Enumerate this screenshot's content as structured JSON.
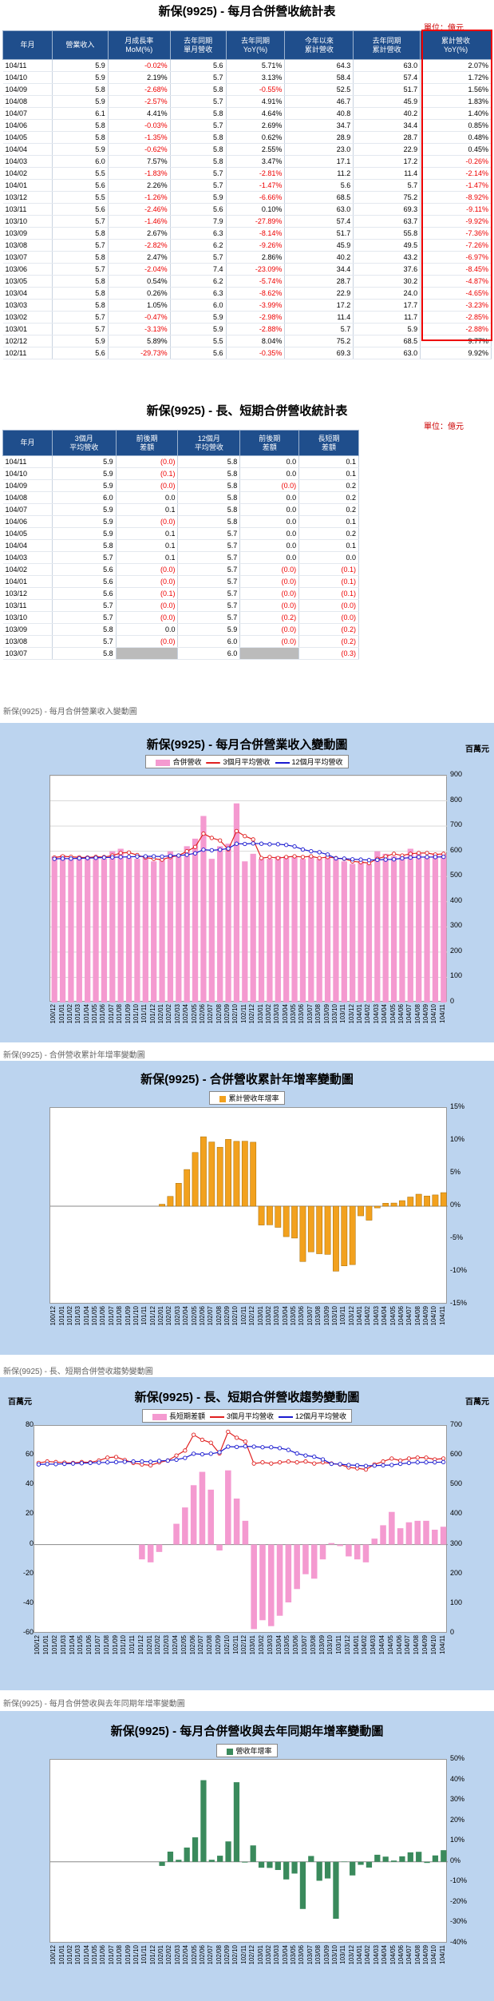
{
  "table1": {
    "title": "新保(9925)  - 每月合併營收統計表",
    "unit": "單位：億元",
    "headers": [
      "年月",
      "營業收入",
      "月成長率\nMoM(%)",
      "去年同期\n單月營收",
      "去年同期\nYoY(%)",
      "今年以來\n累計營收",
      "去年同期\n累計營收",
      "累計營收\nYoY(%)"
    ],
    "rows": [
      [
        "104/11",
        "5.9",
        "-0.02%",
        "5.6",
        "5.71%",
        "64.3",
        "63.0",
        "2.07%"
      ],
      [
        "104/10",
        "5.9",
        "2.19%",
        "5.7",
        "3.13%",
        "58.4",
        "57.4",
        "1.72%"
      ],
      [
        "104/09",
        "5.8",
        "-2.68%",
        "5.8",
        "-0.55%",
        "52.5",
        "51.7",
        "1.56%"
      ],
      [
        "104/08",
        "5.9",
        "-2.57%",
        "5.7",
        "4.91%",
        "46.7",
        "45.9",
        "1.83%"
      ],
      [
        "104/07",
        "6.1",
        "4.41%",
        "5.8",
        "4.64%",
        "40.8",
        "40.2",
        "1.40%"
      ],
      [
        "104/06",
        "5.8",
        "-0.03%",
        "5.7",
        "2.69%",
        "34.7",
        "34.4",
        "0.85%"
      ],
      [
        "104/05",
        "5.8",
        "-1.35%",
        "5.8",
        "0.62%",
        "28.9",
        "28.7",
        "0.48%"
      ],
      [
        "104/04",
        "5.9",
        "-0.62%",
        "5.8",
        "2.55%",
        "23.0",
        "22.9",
        "0.45%"
      ],
      [
        "104/03",
        "6.0",
        "7.57%",
        "5.8",
        "3.47%",
        "17.1",
        "17.2",
        "-0.26%"
      ],
      [
        "104/02",
        "5.5",
        "-1.83%",
        "5.7",
        "-2.81%",
        "11.2",
        "11.4",
        "-2.14%"
      ],
      [
        "104/01",
        "5.6",
        "2.26%",
        "5.7",
        "-1.47%",
        "5.6",
        "5.7",
        "-1.47%"
      ],
      [
        "103/12",
        "5.5",
        "-1.26%",
        "5.9",
        "-6.66%",
        "68.5",
        "75.2",
        "-8.92%"
      ],
      [
        "103/11",
        "5.6",
        "-2.46%",
        "5.6",
        "0.10%",
        "63.0",
        "69.3",
        "-9.11%"
      ],
      [
        "103/10",
        "5.7",
        "-1.46%",
        "7.9",
        "-27.89%",
        "57.4",
        "63.7",
        "-9.92%"
      ],
      [
        "103/09",
        "5.8",
        "2.67%",
        "6.3",
        "-8.14%",
        "51.7",
        "55.8",
        "-7.36%"
      ],
      [
        "103/08",
        "5.7",
        "-2.82%",
        "6.2",
        "-9.26%",
        "45.9",
        "49.5",
        "-7.26%"
      ],
      [
        "103/07",
        "5.8",
        "2.47%",
        "5.7",
        "2.86%",
        "40.2",
        "43.2",
        "-6.97%"
      ],
      [
        "103/06",
        "5.7",
        "-2.04%",
        "7.4",
        "-23.09%",
        "34.4",
        "37.6",
        "-8.45%"
      ],
      [
        "103/05",
        "5.8",
        "0.54%",
        "6.2",
        "-5.74%",
        "28.7",
        "30.2",
        "-4.87%"
      ],
      [
        "103/04",
        "5.8",
        "0.26%",
        "6.3",
        "-8.62%",
        "22.9",
        "24.0",
        "-4.65%"
      ],
      [
        "103/03",
        "5.8",
        "1.05%",
        "6.0",
        "-3.99%",
        "17.2",
        "17.7",
        "-3.23%"
      ],
      [
        "103/02",
        "5.7",
        "-0.47%",
        "5.9",
        "-2.98%",
        "11.4",
        "11.7",
        "-2.85%"
      ],
      [
        "103/01",
        "5.7",
        "-3.13%",
        "5.9",
        "-2.88%",
        "5.7",
        "5.9",
        "-2.88%"
      ],
      [
        "102/12",
        "5.9",
        "5.89%",
        "5.5",
        "8.04%",
        "75.2",
        "68.5",
        "9.77%"
      ],
      [
        "102/11",
        "5.6",
        "-29.73%",
        "5.6",
        "-0.35%",
        "69.3",
        "63.0",
        "9.92%"
      ]
    ]
  },
  "table2": {
    "title": "新保(9925)  - 長、短期合併營收統計表",
    "unit": "單位：億元",
    "headers": [
      "年月",
      "3個月\n平均營收",
      "前後期\n差額",
      "12個月\n平均營收",
      "前後期\n差額",
      "長短期\n差額"
    ],
    "rows": [
      [
        "104/11",
        "5.9",
        "(0.0)",
        "5.8",
        "0.0",
        "0.1"
      ],
      [
        "104/10",
        "5.9",
        "(0.1)",
        "5.8",
        "0.0",
        "0.1"
      ],
      [
        "104/09",
        "5.9",
        "(0.0)",
        "5.8",
        "(0.0)",
        "0.2"
      ],
      [
        "104/08",
        "6.0",
        "0.0",
        "5.8",
        "0.0",
        "0.2"
      ],
      [
        "104/07",
        "5.9",
        "0.1",
        "5.8",
        "0.0",
        "0.2"
      ],
      [
        "104/06",
        "5.9",
        "(0.0)",
        "5.8",
        "0.0",
        "0.1"
      ],
      [
        "104/05",
        "5.9",
        "0.1",
        "5.7",
        "0.0",
        "0.2"
      ],
      [
        "104/04",
        "5.8",
        "0.1",
        "5.7",
        "0.0",
        "0.1"
      ],
      [
        "104/03",
        "5.7",
        "0.1",
        "5.7",
        "0.0",
        "0.0"
      ],
      [
        "104/02",
        "5.6",
        "(0.0)",
        "5.7",
        "(0.0)",
        "(0.1)"
      ],
      [
        "104/01",
        "5.6",
        "(0.0)",
        "5.7",
        "(0.0)",
        "(0.1)"
      ],
      [
        "103/12",
        "5.6",
        "(0.1)",
        "5.7",
        "(0.0)",
        "(0.1)"
      ],
      [
        "103/11",
        "5.7",
        "(0.0)",
        "5.7",
        "(0.0)",
        "(0.0)"
      ],
      [
        "103/10",
        "5.7",
        "(0.0)",
        "5.7",
        "(0.2)",
        "(0.0)"
      ],
      [
        "103/09",
        "5.8",
        "0.0",
        "5.9",
        "(0.0)",
        "(0.2)"
      ],
      [
        "103/08",
        "5.7",
        "(0.0)",
        "6.0",
        "(0.0)",
        "(0.2)"
      ],
      [
        "103/07",
        "5.8",
        "",
        "6.0",
        "",
        "(0.3)"
      ]
    ]
  },
  "captions": [
    "新保(9925)  -  每月合併營業收入變動圖",
    "新保(9925)  -  合併營收累計年增率變動圖",
    "新保(9925)  -  長、短期合併營收趨勢變動圖",
    "新保(9925)  -  每月合併營收與去年同期年增率變動圖"
  ],
  "months": [
    "100/12",
    "101/01",
    "101/02",
    "101/03",
    "101/04",
    "101/05",
    "101/06",
    "101/07",
    "101/08",
    "101/09",
    "101/10",
    "101/11",
    "101/12",
    "102/01",
    "102/02",
    "102/03",
    "102/04",
    "102/05",
    "102/06",
    "102/07",
    "102/08",
    "102/09",
    "102/10",
    "102/11",
    "102/12",
    "103/01",
    "103/02",
    "103/03",
    "103/04",
    "103/05",
    "103/06",
    "103/07",
    "103/08",
    "103/09",
    "103/10",
    "103/11",
    "103/12",
    "104/01",
    "104/02",
    "104/03",
    "104/04",
    "104/05",
    "104/06",
    "104/07",
    "104/08",
    "104/09",
    "104/10",
    "104/11"
  ],
  "chart_data": [
    {
      "type": "bar",
      "title": "新保(9925)  - 每月合併營業收入變動圖",
      "unit_label": "百萬元",
      "legend": [
        "合併營收",
        "3個月平均營收",
        "12個月平均營收"
      ],
      "ylim": [
        0,
        900
      ],
      "yticks": [
        0,
        100,
        200,
        300,
        400,
        500,
        600,
        700,
        800,
        900
      ],
      "series": [
        {
          "name": "合併營收",
          "values": [
            580,
            585,
            570,
            575,
            580,
            580,
            570,
            600,
            610,
            575,
            570,
            580,
            560,
            570,
            600,
            580,
            620,
            650,
            740,
            570,
            620,
            630,
            790,
            560,
            590,
            570,
            570,
            580,
            580,
            580,
            570,
            580,
            570,
            580,
            570,
            560,
            550,
            560,
            550,
            600,
            590,
            580,
            580,
            610,
            590,
            580,
            590,
            590
          ]
        },
        {
          "name": "3個月平均營收",
          "values": [
            575,
            580,
            578,
            576,
            575,
            578,
            577,
            583,
            593,
            595,
            585,
            575,
            570,
            567,
            577,
            583,
            600,
            617,
            670,
            653,
            643,
            607,
            680,
            660,
            647,
            573,
            577,
            573,
            577,
            580,
            577,
            580,
            573,
            577,
            573,
            570,
            560,
            557,
            553,
            570,
            580,
            590,
            583,
            590,
            593,
            593,
            587,
            590
          ]
        },
        {
          "name": "12個月平均營收",
          "values": [
            570,
            571,
            571,
            572,
            573,
            574,
            575,
            576,
            577,
            578,
            579,
            580,
            580,
            579,
            582,
            583,
            586,
            592,
            606,
            604,
            606,
            611,
            630,
            629,
            631,
            630,
            628,
            628,
            625,
            619,
            607,
            600,
            596,
            587,
            572,
            571,
            568,
            567,
            565,
            566,
            567,
            568,
            572,
            575,
            577,
            577,
            577,
            578
          ]
        }
      ]
    },
    {
      "type": "bar",
      "title": "新保(9925)  - 合併營收累計年增率變動圖",
      "legend": [
        "累計營收年增率"
      ],
      "ylim": [
        -15,
        15
      ],
      "yticks": [
        15,
        10,
        5,
        0,
        -5,
        -10,
        -15
      ],
      "series": [
        {
          "name": "累計營收年增率",
          "values": [
            0,
            0,
            0,
            0,
            0,
            0,
            0,
            0,
            0,
            0,
            0,
            0,
            0,
            0.3,
            1.5,
            3.5,
            5.6,
            8.2,
            10.6,
            9.8,
            9.0,
            10.2,
            9.9,
            9.92,
            9.77,
            -2.88,
            -2.85,
            -3.23,
            -4.65,
            -4.87,
            -8.45,
            -6.97,
            -7.26,
            -7.36,
            -9.92,
            -9.11,
            -8.92,
            -1.47,
            -2.14,
            -0.26,
            0.45,
            0.48,
            0.85,
            1.4,
            1.83,
            1.56,
            1.72,
            2.07
          ]
        }
      ]
    },
    {
      "type": "bar",
      "title": "新保(9925)  - 長、短期合併營收趨勢變動圖",
      "unit_label": "百萬元",
      "legend": [
        "長短期差額",
        "3個月平均營收",
        "12個月平均營收"
      ],
      "ylim": [
        -60,
        80
      ],
      "ylim_right": [
        0,
        700
      ],
      "yticks": [
        80,
        60,
        40,
        20,
        0,
        -20,
        -40,
        -60
      ],
      "yticks_right": [
        700,
        600,
        500,
        400,
        300,
        200,
        100,
        0
      ],
      "series": [
        {
          "name": "長短期差額",
          "values": [
            0,
            0,
            0,
            0,
            0,
            0,
            0,
            0,
            0,
            0,
            0,
            0,
            -10,
            -12,
            -5,
            0,
            14,
            25,
            40,
            49,
            37,
            -4,
            50,
            31,
            16,
            -57,
            -51,
            -55,
            -48,
            -39,
            -30,
            -20,
            -23,
            -10,
            1,
            -1,
            -8,
            -10,
            -12,
            4,
            13,
            22,
            11,
            15,
            16,
            16,
            10,
            12
          ]
        },
        {
          "name": "3個月平均營收",
          "values": [
            575,
            580,
            578,
            576,
            575,
            578,
            577,
            583,
            593,
            595,
            585,
            575,
            570,
            567,
            577,
            583,
            600,
            617,
            670,
            653,
            643,
            607,
            680,
            660,
            647,
            573,
            577,
            573,
            577,
            580,
            577,
            580,
            573,
            577,
            573,
            570,
            560,
            557,
            553,
            570,
            580,
            590,
            583,
            590,
            593,
            593,
            587,
            590
          ]
        },
        {
          "name": "12個月平均營收",
          "values": [
            570,
            571,
            571,
            572,
            573,
            574,
            575,
            576,
            577,
            578,
            579,
            580,
            580,
            579,
            582,
            583,
            586,
            592,
            606,
            604,
            606,
            611,
            630,
            629,
            631,
            630,
            628,
            628,
            625,
            619,
            607,
            600,
            596,
            587,
            572,
            571,
            568,
            567,
            565,
            566,
            567,
            568,
            572,
            575,
            577,
            577,
            577,
            578
          ]
        }
      ]
    },
    {
      "type": "bar",
      "title": "新保(9925)  - 每月合併營收與去年同期年增率變動圖",
      "legend": [
        "營收年增率"
      ],
      "ylim": [
        -40,
        50
      ],
      "yticks": [
        50,
        40,
        30,
        20,
        10,
        0,
        -10,
        -20,
        -30,
        -40
      ],
      "series": [
        {
          "name": "營收年增率",
          "values": [
            0,
            0,
            0,
            0,
            0,
            0,
            0,
            0,
            0,
            0,
            0,
            0,
            0,
            -2,
            5,
            1,
            7,
            12,
            40,
            1,
            3,
            10,
            39,
            -0.35,
            8.04,
            -2.88,
            -2.98,
            -3.99,
            -8.62,
            -5.74,
            -23.09,
            2.86,
            -9.26,
            -8.14,
            -27.89,
            0.1,
            -6.66,
            -1.47,
            -2.81,
            3.47,
            2.55,
            0.62,
            2.69,
            4.64,
            4.91,
            -0.55,
            3.13,
            5.71
          ]
        }
      ]
    }
  ]
}
